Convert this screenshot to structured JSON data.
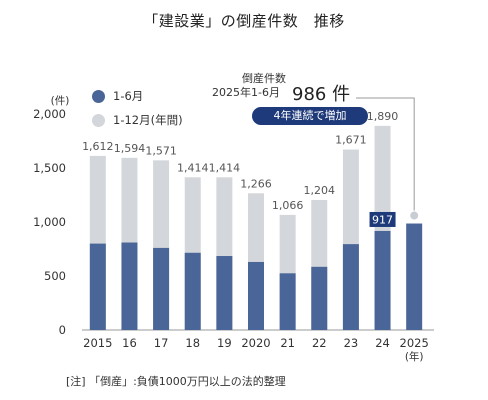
{
  "title": "「建設業」の倒産件数　推移",
  "legend": [
    {
      "label": "1-6月",
      "color": "#4a6698"
    },
    {
      "label": "1-12月(年間)",
      "color": "#d3d6db"
    }
  ],
  "annotation": {
    "label_line1": "倒産件数",
    "label_line2": "2025年1-6月",
    "value": "986 件",
    "badge": "4年連続で増加"
  },
  "note": "[注] 「倒産」:負債1000万円以上の法的整理",
  "colors": {
    "h1": "#4a6698",
    "annual": "#d3d6db",
    "highlight": "#1f3a7a"
  },
  "chart_data": {
    "type": "bar",
    "ylabel": "(件)",
    "xlabel": "",
    "x_unit": "(年)",
    "ylim": [
      0,
      2000
    ],
    "yticks": [
      0,
      500,
      1000,
      1500,
      2000
    ],
    "ytick_labels": [
      "0",
      "500",
      "1,000",
      "1,500",
      "2,000"
    ],
    "categories": [
      "2015",
      "16",
      "17",
      "18",
      "19",
      "2020",
      "21",
      "22",
      "23",
      "24",
      "2025"
    ],
    "series": [
      {
        "name": "1-12月(年間)",
        "values": [
          1612,
          1594,
          1571,
          1414,
          1414,
          1266,
          1066,
          1204,
          1671,
          1890,
          null
        ],
        "labels": [
          "1,612",
          "1,594",
          "1,571",
          "1,414",
          "1,414",
          "1,266",
          "1,066",
          "1,204",
          "1,671",
          "1,890",
          ""
        ]
      },
      {
        "name": "1-6月",
        "values": [
          800,
          810,
          760,
          715,
          685,
          630,
          525,
          585,
          795,
          917,
          986
        ],
        "labels": [
          "",
          "",
          "",
          "",
          "",
          "",
          "",
          "",
          "",
          "917",
          ""
        ]
      }
    ]
  }
}
